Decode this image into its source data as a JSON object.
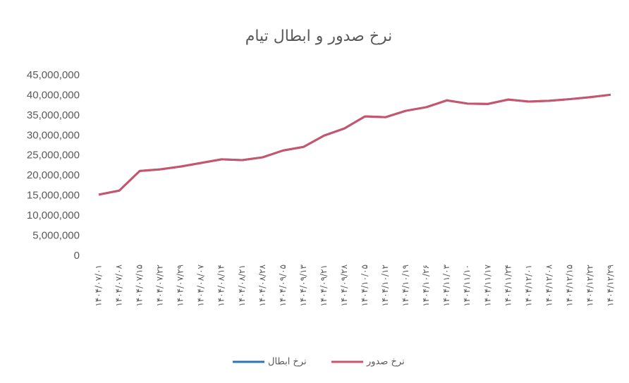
{
  "chart_data": {
    "type": "line",
    "title": "نرخ صدور و ابطال تیام",
    "categories": [
      "۱۴۰۴/۰۷/۰۱",
      "۱۴۰۴/۰۷/۰۸",
      "۱۴۰۴/۰۷/۱۵",
      "۱۴۰۴/۰۷/۲۲",
      "۱۴۰۴/۰۷/۲۹",
      "۱۴۰۴/۰۸/۰۷",
      "۱۴۰۴/۰۸/۱۴",
      "۱۴۰۴/۰۸/۲۱",
      "۱۴۰۴/۰۸/۲۸",
      "۱۴۰۴/۰۹/۰۵",
      "۱۴۰۴/۰۹/۱۳",
      "۱۴۰۴/۰۹/۲۱",
      "۱۴۰۴/۰۹/۲۸",
      "۱۴۰۴/۱۰/۰۵",
      "۱۴۰۴/۱۰/۱۲",
      "۱۴۰۴/۱۰/۱۹",
      "۱۴۰۴/۱۰/۲۶",
      "۱۴۰۴/۱۱/۰۳",
      "۱۴۰۴/۱۱/۱۰",
      "۱۴۰۴/۱۱/۱۷",
      "۱۴۰۴/۱۱/۲۴",
      "۱۴۰۴/۱۲/۰۱",
      "۱۴۰۴/۱۲/۰۸",
      "۱۴۰۴/۱۲/۱۵",
      "۱۴۰۴/۱۲/۲۲",
      "۱۴۰۴/۱۲/۲۹"
    ],
    "series": [
      {
        "name": "نرخ ابطال",
        "color": "#2e75b6",
        "values": [
          15300000,
          16300000,
          21200000,
          21600000,
          22300000,
          23200000,
          24100000,
          23900000,
          24600000,
          26300000,
          27200000,
          30000000,
          31800000,
          34800000,
          34600000,
          36200000,
          37100000,
          38800000,
          38000000,
          37900000,
          39000000,
          38500000,
          38700000,
          39100000,
          39600000,
          40200000
        ]
      },
      {
        "name": "نرخ صدور",
        "color": "#c9546c",
        "values": [
          15300000,
          16300000,
          21200000,
          21600000,
          22300000,
          23200000,
          24100000,
          23900000,
          24600000,
          26300000,
          27200000,
          30000000,
          31800000,
          34800000,
          34600000,
          36200000,
          37100000,
          38800000,
          38000000,
          37900000,
          39000000,
          38500000,
          38700000,
          39100000,
          39600000,
          40200000
        ]
      }
    ],
    "ylim": [
      0,
      45000000
    ],
    "yticks": [
      0,
      {
        "value": 5000000,
        "label": "5,000,000"
      },
      {
        "value": 10000000,
        "label": "10,000,000"
      },
      {
        "value": 15000000,
        "label": "15,000,000"
      },
      {
        "value": 20000000,
        "label": "20,000,000"
      },
      {
        "value": 25000000,
        "label": "25,000,000"
      },
      {
        "value": 30000000,
        "label": "30,000,000"
      },
      {
        "value": 35000000,
        "label": "35,000,000"
      },
      {
        "value": 40000000,
        "label": "40,000,000"
      },
      {
        "value": 45000000,
        "label": "45,000,000"
      }
    ],
    "legend": "bottom"
  }
}
